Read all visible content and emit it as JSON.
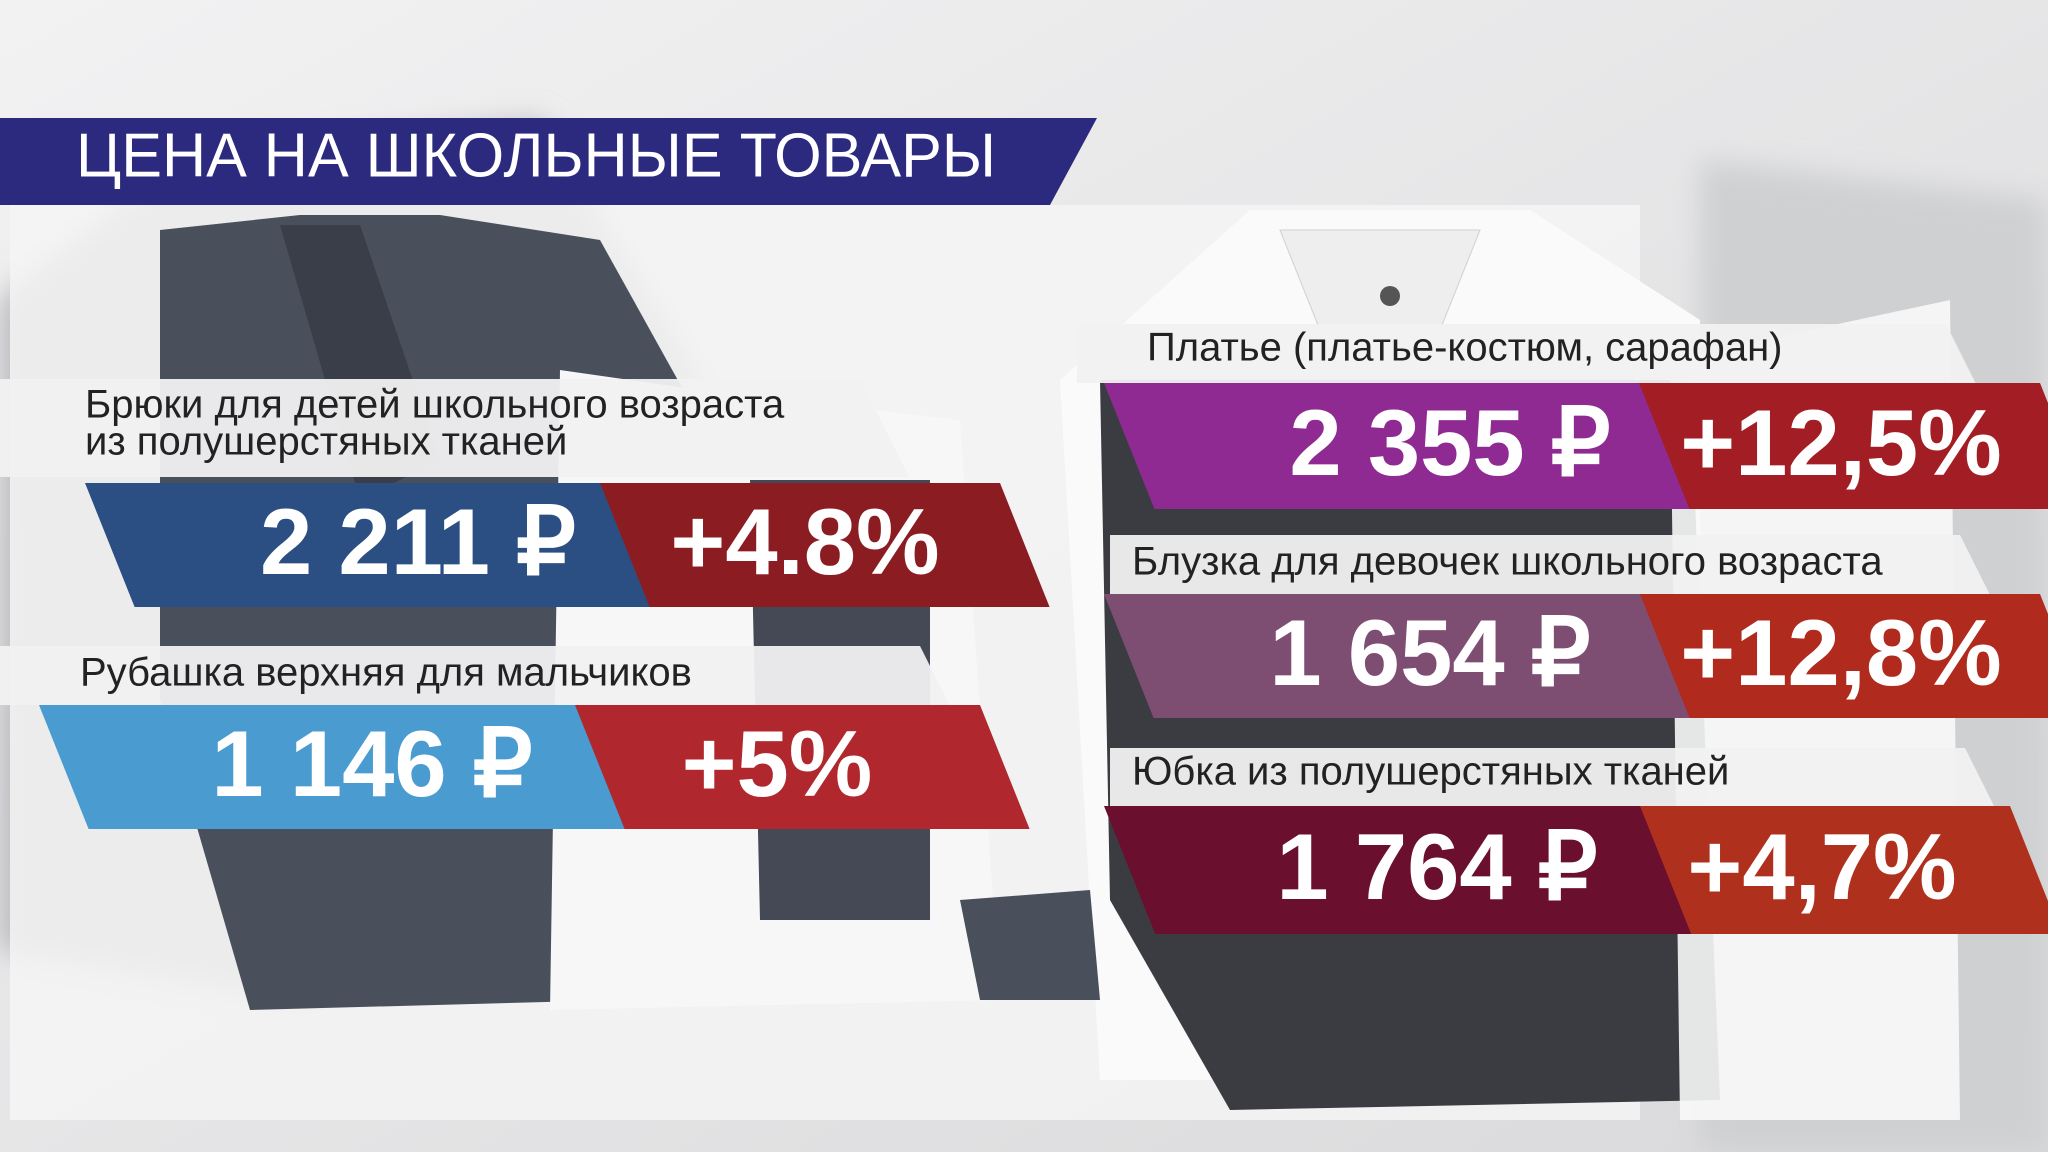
{
  "title": "ЦЕНА НА ШКОЛЬНЫЕ ТОВАРЫ",
  "items": [
    {
      "label": [
        "Брюки для детей школьного возраста",
        "из полушерстяных тканей"
      ],
      "price": "2 211 ₽",
      "change": "+4.8%"
    },
    {
      "label": [
        "Рубашка верхняя для мальчиков"
      ],
      "price": "1 146 ₽",
      "change": "+5%"
    },
    {
      "label": [
        "Платье (платье-костюм, сарафан)"
      ],
      "price": "2 355 ₽",
      "change": "+12,5%"
    },
    {
      "label": [
        "Блузка для девочек школьного возраста"
      ],
      "price": "1 654 ₽",
      "change": "+12,8%"
    },
    {
      "label": [
        "Юбка из полушерстяных тканей"
      ],
      "price": "1 764 ₽",
      "change": "+4,7%"
    }
  ]
}
